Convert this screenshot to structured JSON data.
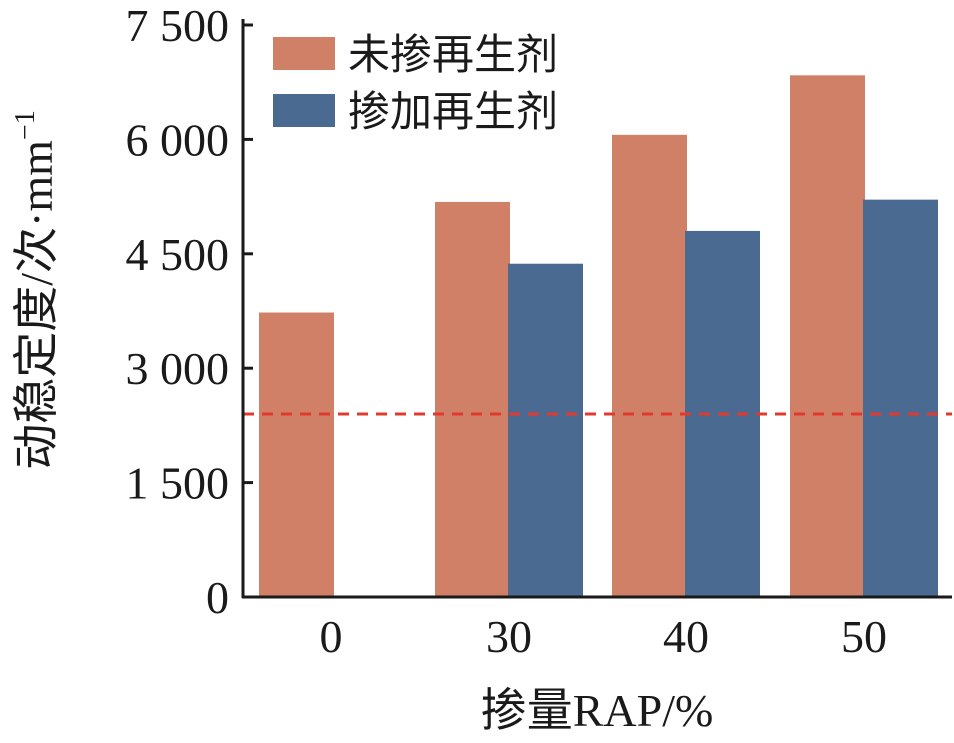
{
  "chart_data": {
    "type": "bar",
    "categories": [
      "0",
      "30",
      "40",
      "50"
    ],
    "series": [
      {
        "name": "未掺再生剂",
        "color": "#d08066",
        "values": [
          3730,
          5180,
          6060,
          6840
        ]
      },
      {
        "name": "掺加再生剂",
        "color": "#4a6a91",
        "values": [
          null,
          4370,
          4800,
          5210
        ]
      }
    ],
    "xlabel": "掺量RAP/%",
    "ylabel": "动稳定度/次·mm",
    "ylabel_superscript": "−1",
    "ylim": [
      0,
      7500
    ],
    "yticks": [
      0,
      1500,
      3000,
      4500,
      6000,
      7500
    ],
    "ytick_labels": [
      "0",
      "1 500",
      "3 000",
      "4 500",
      "6 000",
      "7 500"
    ],
    "reference_line": {
      "value": 2400,
      "color": "#e03a2f",
      "style": "dashed"
    },
    "grid": false,
    "legend_position": "top-left"
  }
}
